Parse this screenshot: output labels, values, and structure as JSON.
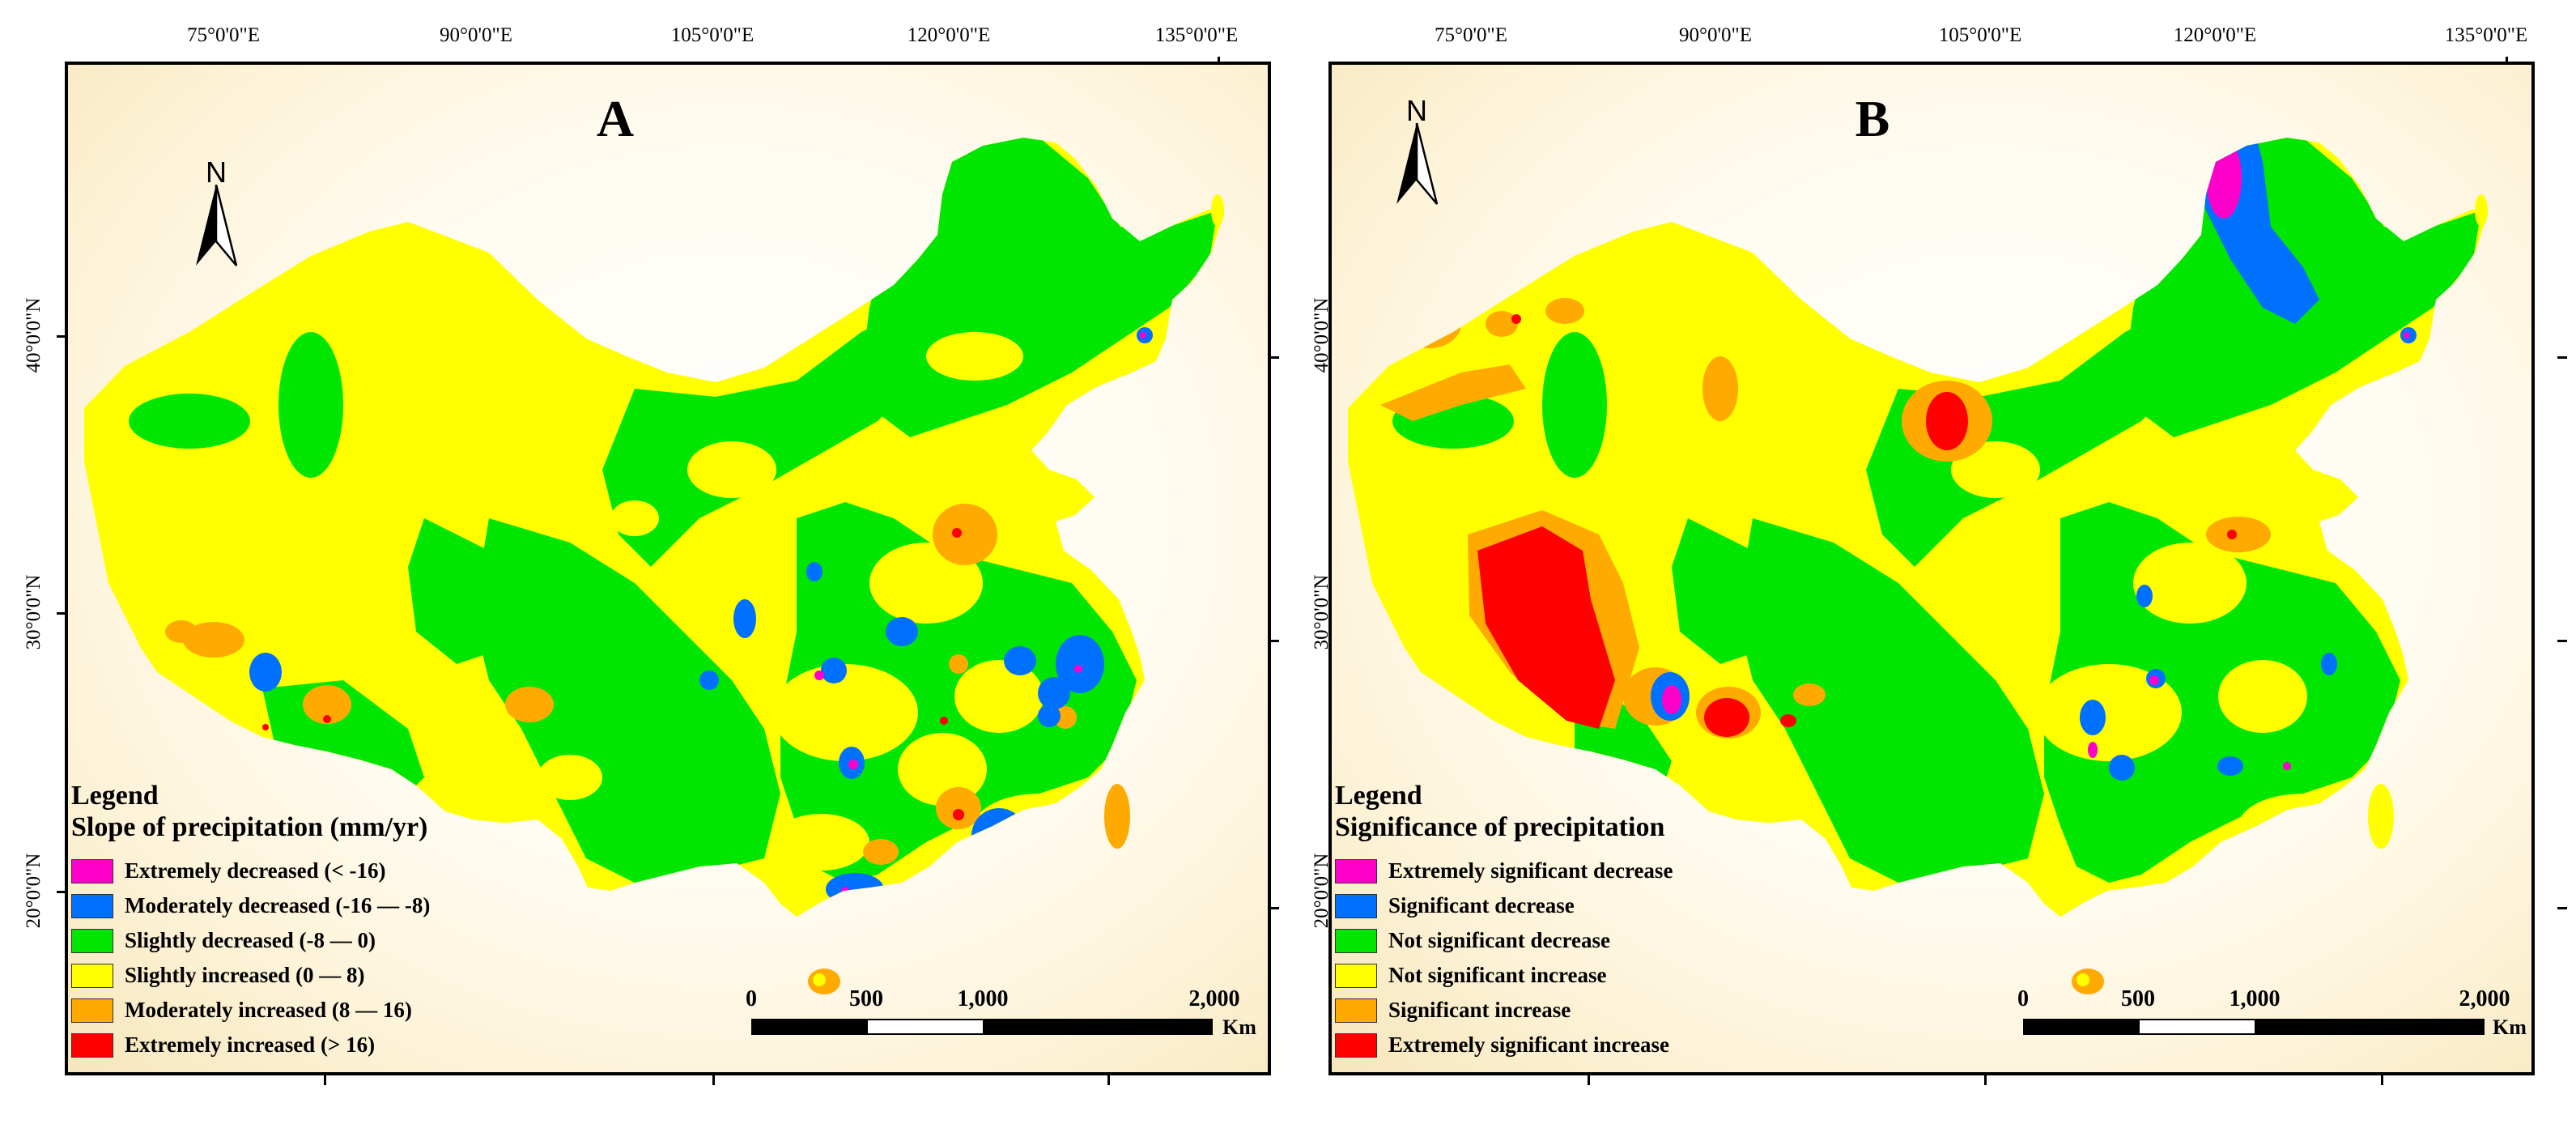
{
  "graticule": {
    "longitudes": [
      "75°0'0\"E",
      "90°0'0\"E",
      "105°0'0\"E",
      "120°0'0\"E",
      "135°0'0\"E"
    ],
    "latitudes": [
      "40°0'0\"N",
      "30°0'0\"N",
      "20°0'0\"N"
    ]
  },
  "north_arrow": {
    "letter": "N"
  },
  "scale_bar": {
    "labels": [
      "0",
      "500",
      "1,000",
      "2,000"
    ],
    "unit": "Km"
  },
  "panels": [
    {
      "label": "A",
      "legend": {
        "title": "Legend",
        "subtitle": "Slope of precipitation (mm/yr)",
        "items": [
          {
            "color": "#ff00cc",
            "label": "Extremely decreased (< -16)"
          },
          {
            "color": "#0070ff",
            "label": "Moderately decreased (-16 — -8)"
          },
          {
            "color": "#00e600",
            "label": "Slightly decreased (-8 — 0)"
          },
          {
            "color": "#ffff00",
            "label": "Slightly increased (0 — 8)"
          },
          {
            "color": "#ffaa00",
            "label": "Moderately increased (8 — 16)"
          },
          {
            "color": "#ff0000",
            "label": "Extremely increased (> 16)"
          }
        ]
      }
    },
    {
      "label": "B",
      "legend": {
        "title": "Legend",
        "subtitle": "Significance of precipitation",
        "items": [
          {
            "color": "#ff00cc",
            "label": "Extremely significant decrease"
          },
          {
            "color": "#0070ff",
            "label": "Significant decrease"
          },
          {
            "color": "#00e600",
            "label": "Not significant decrease"
          },
          {
            "color": "#ffff00",
            "label": "Not significant increase"
          },
          {
            "color": "#ffaa00",
            "label": "Significant increase"
          },
          {
            "color": "#ff0000",
            "label": "Extremely significant increase"
          }
        ]
      }
    }
  ]
}
